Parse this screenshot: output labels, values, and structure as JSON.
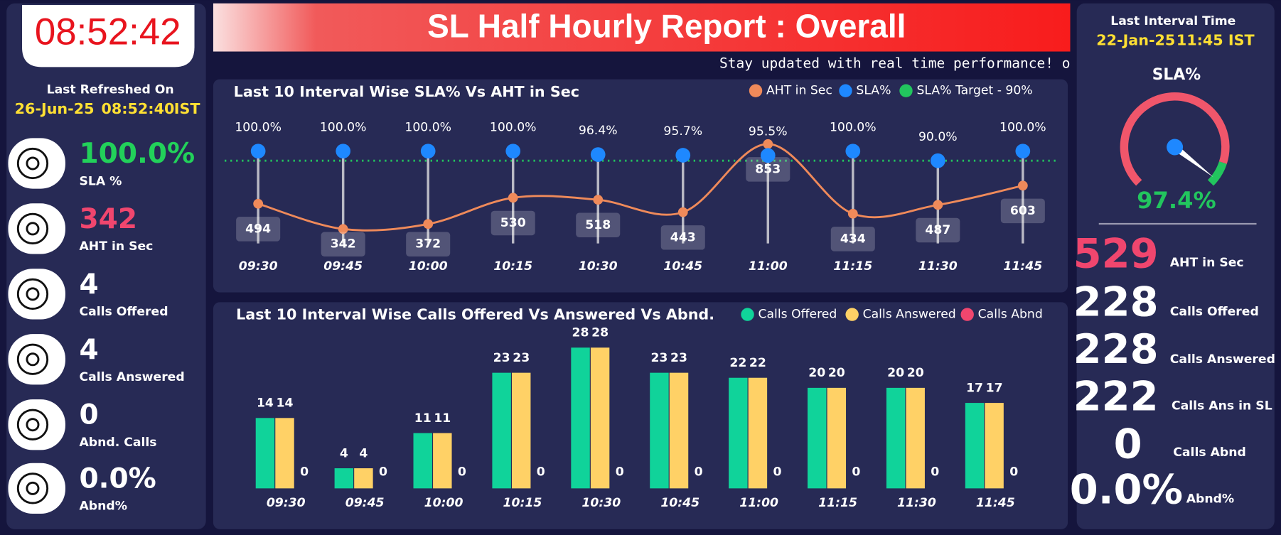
{
  "clock": "08:52:42",
  "refreshed": {
    "label": "Last Refreshed On",
    "date": "26-Jun-25",
    "time": "08:52:40",
    "tz": "IST"
  },
  "left_kpis": [
    {
      "value": "100.0%",
      "label": "SLA %"
    },
    {
      "value": "342",
      "label": "AHT in Sec"
    },
    {
      "value": "4",
      "label": "Calls Offered"
    },
    {
      "value": "4",
      "label": "Calls Answered"
    },
    {
      "value": "0",
      "label": "Abnd. Calls"
    },
    {
      "value": "0.0%",
      "label": "Abnd%"
    }
  ],
  "header": {
    "title": "SL Half Hourly Report : Overall",
    "ticker": "Stay updated with real time performance! o"
  },
  "right": {
    "label": "Last Interval Time",
    "date": "22-Jan-25",
    "time": "11:45 IST",
    "stats": [
      {
        "value": "529",
        "label": "AHT in Sec"
      },
      {
        "value": "228",
        "label": "Calls Offered"
      },
      {
        "value": "228",
        "label": "Calls Answered"
      },
      {
        "value": "222",
        "label": "Calls Ans in SL"
      },
      {
        "value": "0",
        "label": "Calls Abnd"
      },
      {
        "value": "0.0%",
        "label": "Abnd%"
      }
    ]
  },
  "chart_data": [
    {
      "type": "line",
      "title": "Last 10 Interval Wise SLA% Vs AHT in Sec",
      "categories": [
        "09:30",
        "09:45",
        "10:00",
        "10:15",
        "10:30",
        "10:45",
        "11:00",
        "11:15",
        "11:30",
        "11:45"
      ],
      "ylim": [
        0,
        1100
      ],
      "y2lim": [
        -40,
        150
      ],
      "series": [
        {
          "name": "AHT in Sec",
          "color": "#ef8a5a",
          "values": [
            494,
            342,
            372,
            530,
            518,
            443,
            853,
            434,
            487,
            603
          ]
        },
        {
          "name": "SLA%",
          "color": "#1e88ff",
          "axis": "y2",
          "values": [
            100,
            100,
            100,
            100,
            96.4,
            95.7,
            95.5,
            100,
            90,
            100
          ],
          "value_labels": [
            "100.0%",
            "100.0%",
            "100.0%",
            "100.0%",
            "96.4%",
            "95.7%",
            "95.5%",
            "100.0%",
            "90.0%",
            "100.0%"
          ]
        }
      ],
      "target": {
        "name": "SLA% Target - 90%",
        "color": "#22c55e",
        "value": 90,
        "axis": "y2"
      }
    },
    {
      "type": "bar",
      "title": "Last 10 Interval Wise Calls Offered Vs Answered Vs Abnd.",
      "categories": [
        "09:30",
        "09:45",
        "10:00",
        "10:15",
        "10:30",
        "10:45",
        "11:00",
        "11:15",
        "11:30",
        "11:45"
      ],
      "ylim": [
        0,
        32
      ],
      "series": [
        {
          "name": "Calls Offered",
          "color": "#10d39a",
          "values": [
            14,
            4,
            11,
            23,
            28,
            23,
            22,
            20,
            20,
            17
          ]
        },
        {
          "name": "Calls Answered",
          "color": "#ffd166",
          "values": [
            14,
            4,
            11,
            23,
            28,
            23,
            22,
            20,
            20,
            17
          ]
        },
        {
          "name": "Calls Abnd",
          "color": "#f0466e",
          "values": [
            0,
            0,
            0,
            0,
            0,
            0,
            0,
            0,
            0,
            0
          ]
        }
      ]
    },
    {
      "type": "gauge",
      "title": "SLA%",
      "value": 97.4,
      "value_label": "97.4%",
      "ylim": [
        0,
        100
      ],
      "color": "#22c55e"
    }
  ]
}
